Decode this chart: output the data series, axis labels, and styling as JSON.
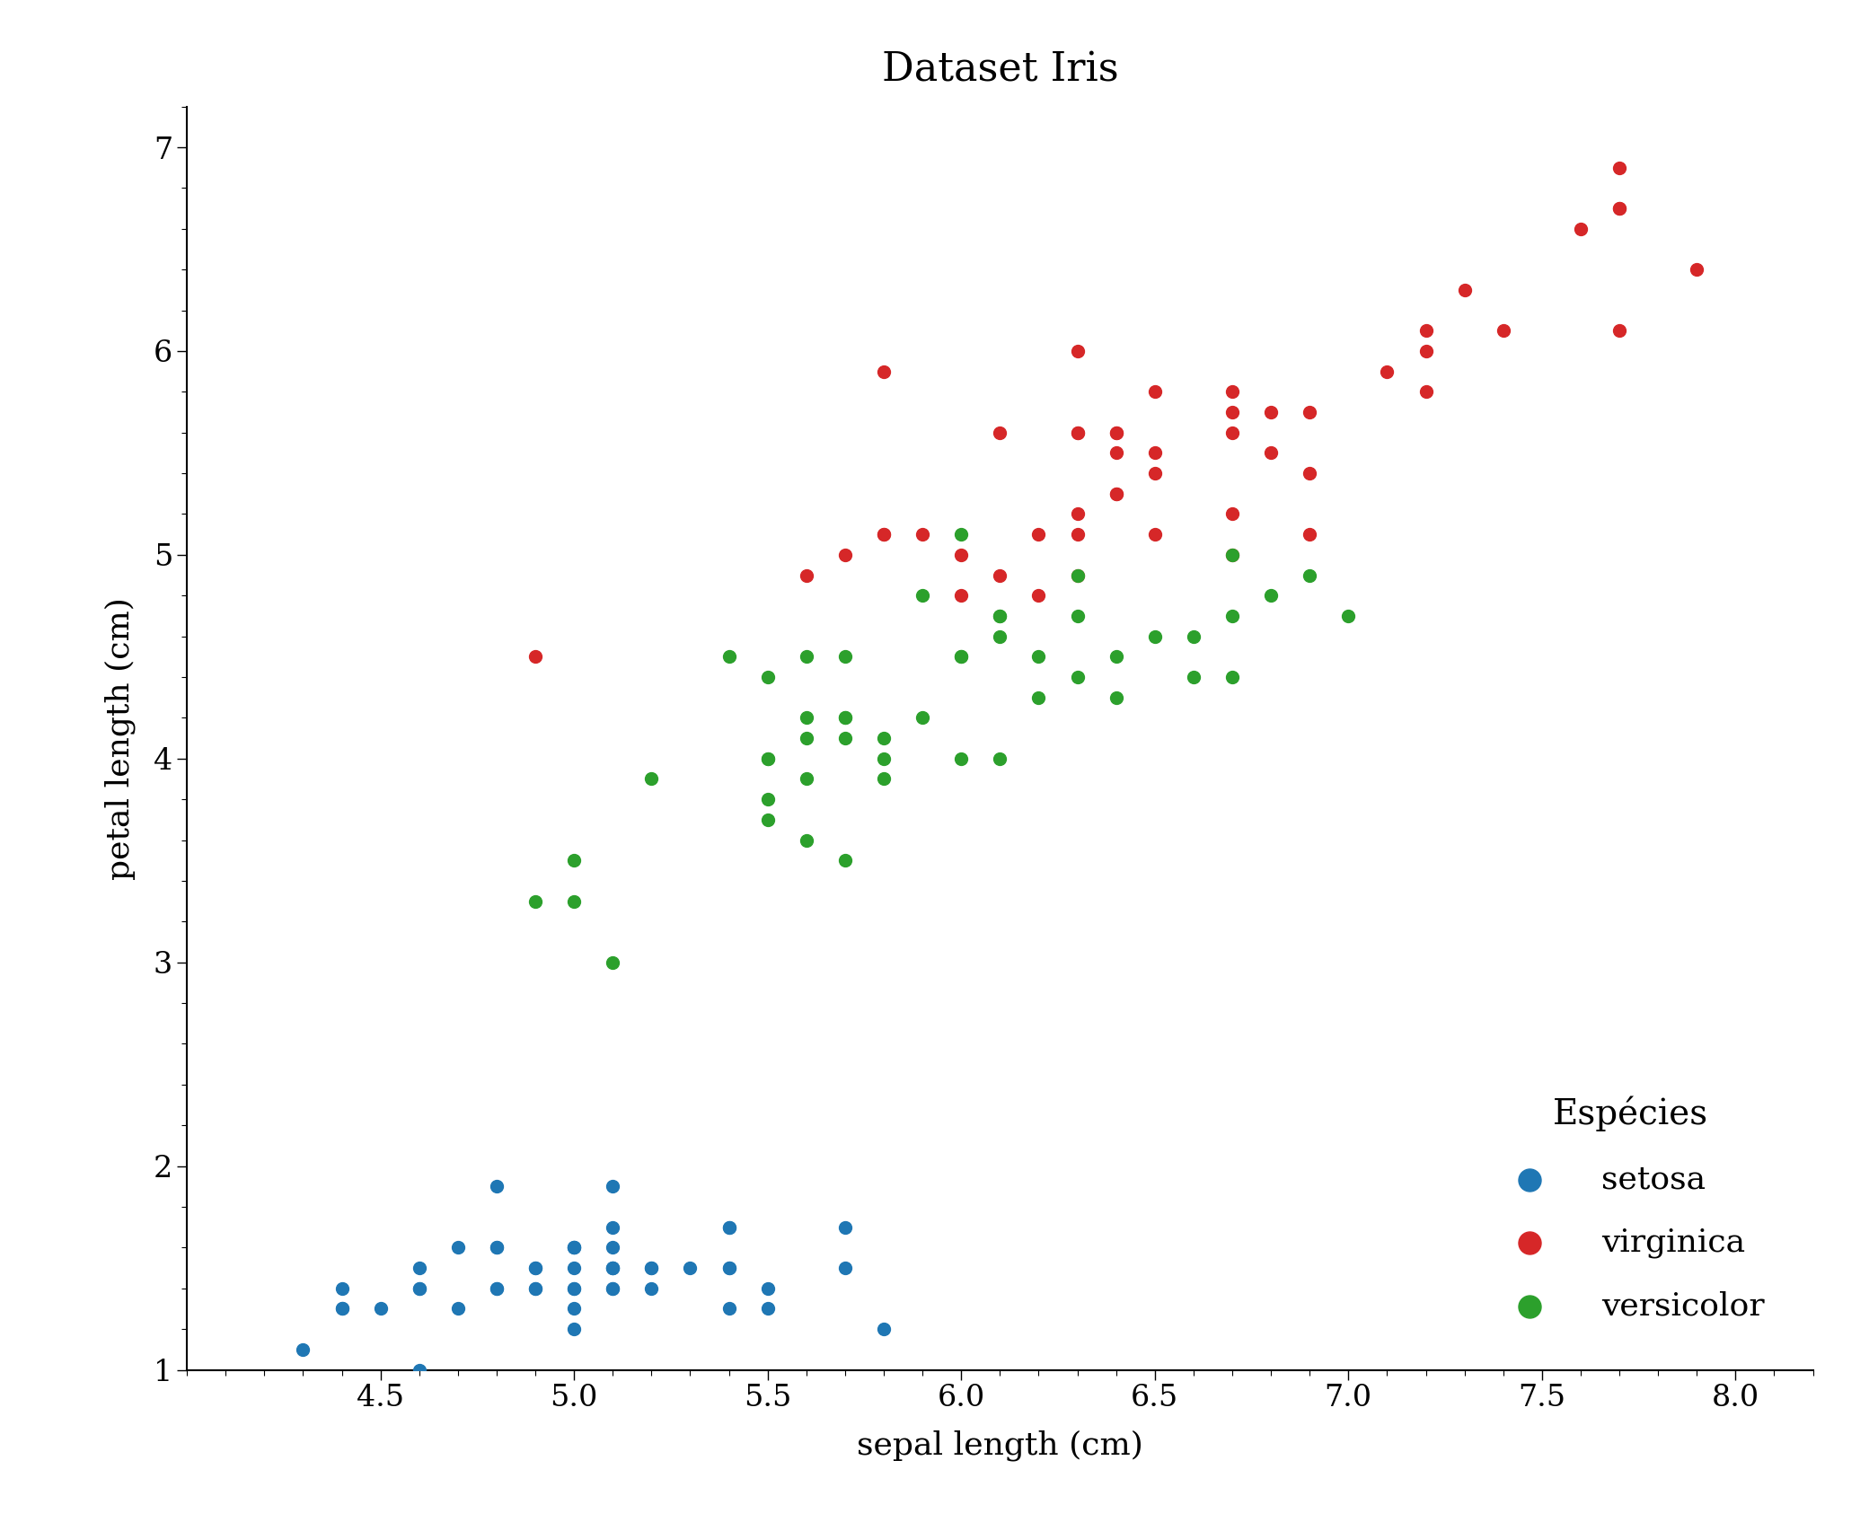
{
  "title": "Dataset Iris",
  "xlabel": "sepal length (cm)",
  "ylabel": "petal length (cm)",
  "xlim": [
    4.0,
    8.2
  ],
  "ylim": [
    1.0,
    7.2
  ],
  "xlim_display": [
    4.0,
    8.0
  ],
  "ylim_display": [
    1.0,
    7.0
  ],
  "legend_title": "Espécies",
  "species": [
    "setosa",
    "virginica",
    "versicolor"
  ],
  "colors": [
    "#1f77b4",
    "#d62728",
    "#2ca02c"
  ],
  "setosa_x": [
    5.1,
    4.9,
    4.7,
    4.6,
    5.0,
    5.4,
    4.6,
    5.0,
    4.4,
    4.9,
    5.4,
    4.8,
    4.8,
    4.3,
    5.8,
    5.7,
    5.4,
    5.1,
    5.7,
    5.1,
    5.4,
    5.1,
    4.6,
    5.1,
    4.8,
    5.0,
    5.0,
    5.2,
    5.2,
    4.7,
    4.8,
    5.4,
    5.2,
    5.5,
    4.9,
    5.0,
    5.5,
    4.9,
    4.4,
    5.1,
    5.0,
    4.5,
    4.4,
    5.0,
    5.1,
    4.8,
    5.1,
    4.6,
    5.3,
    5.0
  ],
  "setosa_y": [
    1.4,
    1.4,
    1.3,
    1.5,
    1.4,
    1.7,
    1.4,
    1.5,
    1.4,
    1.5,
    1.5,
    1.6,
    1.4,
    1.1,
    1.2,
    1.5,
    1.3,
    1.4,
    1.7,
    1.5,
    1.7,
    1.5,
    1.0,
    1.7,
    1.9,
    1.6,
    1.6,
    1.5,
    1.4,
    1.6,
    1.6,
    1.5,
    1.5,
    1.4,
    1.5,
    1.2,
    1.3,
    1.4,
    1.3,
    1.5,
    1.3,
    1.3,
    1.3,
    1.6,
    1.9,
    1.4,
    1.6,
    1.4,
    1.5,
    1.4
  ],
  "virginica_x": [
    6.3,
    5.8,
    7.1,
    6.3,
    6.5,
    7.6,
    4.9,
    7.3,
    6.7,
    7.2,
    6.5,
    6.4,
    6.8,
    5.7,
    5.8,
    6.4,
    6.5,
    7.7,
    7.7,
    6.0,
    6.9,
    5.6,
    7.7,
    6.3,
    6.7,
    7.2,
    6.2,
    6.1,
    6.4,
    7.2,
    7.4,
    7.9,
    6.4,
    6.3,
    6.1,
    7.7,
    6.3,
    6.4,
    6.0,
    6.9,
    6.7,
    6.9,
    5.8,
    6.8,
    6.7,
    6.7,
    6.3,
    6.5,
    6.2,
    5.9
  ],
  "virginica_y": [
    6.0,
    5.1,
    5.9,
    5.6,
    5.8,
    6.6,
    4.5,
    6.3,
    5.8,
    6.1,
    5.1,
    5.3,
    5.5,
    5.0,
    5.1,
    5.3,
    5.5,
    6.7,
    6.9,
    5.0,
    5.7,
    4.9,
    6.7,
    4.9,
    5.7,
    6.0,
    4.8,
    4.9,
    5.6,
    5.8,
    6.1,
    6.4,
    5.6,
    5.1,
    5.6,
    6.1,
    5.6,
    5.5,
    4.8,
    5.4,
    5.6,
    5.1,
    5.9,
    5.7,
    5.2,
    5.0,
    5.2,
    5.4,
    5.1,
    5.1
  ],
  "versicolor_x": [
    7.0,
    6.4,
    6.9,
    5.5,
    6.5,
    5.7,
    6.3,
    4.9,
    6.6,
    5.2,
    5.0,
    5.9,
    6.0,
    6.1,
    5.6,
    6.7,
    5.6,
    5.8,
    6.2,
    5.6,
    5.9,
    6.1,
    6.3,
    6.1,
    6.4,
    6.6,
    6.8,
    6.7,
    6.0,
    5.7,
    5.5,
    5.5,
    5.8,
    6.0,
    5.4,
    6.0,
    6.7,
    6.3,
    5.6,
    5.5,
    5.5,
    6.1,
    5.8,
    5.0,
    5.6,
    5.7,
    5.7,
    6.2,
    5.1,
    5.7
  ],
  "versicolor_y": [
    4.7,
    4.5,
    4.9,
    4.0,
    4.6,
    4.5,
    4.7,
    3.3,
    4.6,
    3.9,
    3.5,
    4.2,
    4.0,
    4.7,
    3.6,
    4.4,
    4.5,
    4.1,
    4.5,
    3.9,
    4.8,
    4.0,
    4.9,
    4.7,
    4.3,
    4.4,
    4.8,
    5.0,
    4.5,
    3.5,
    3.8,
    3.7,
    3.9,
    5.1,
    4.5,
    4.5,
    4.7,
    4.4,
    4.1,
    4.0,
    4.4,
    4.6,
    4.0,
    3.3,
    4.2,
    4.2,
    4.2,
    4.3,
    3.0,
    4.1
  ],
  "title_fontsize": 32,
  "label_fontsize": 26,
  "tick_fontsize": 24,
  "legend_fontsize": 26,
  "legend_title_fontsize": 28,
  "marker_size": 100,
  "background_color": "#ffffff"
}
